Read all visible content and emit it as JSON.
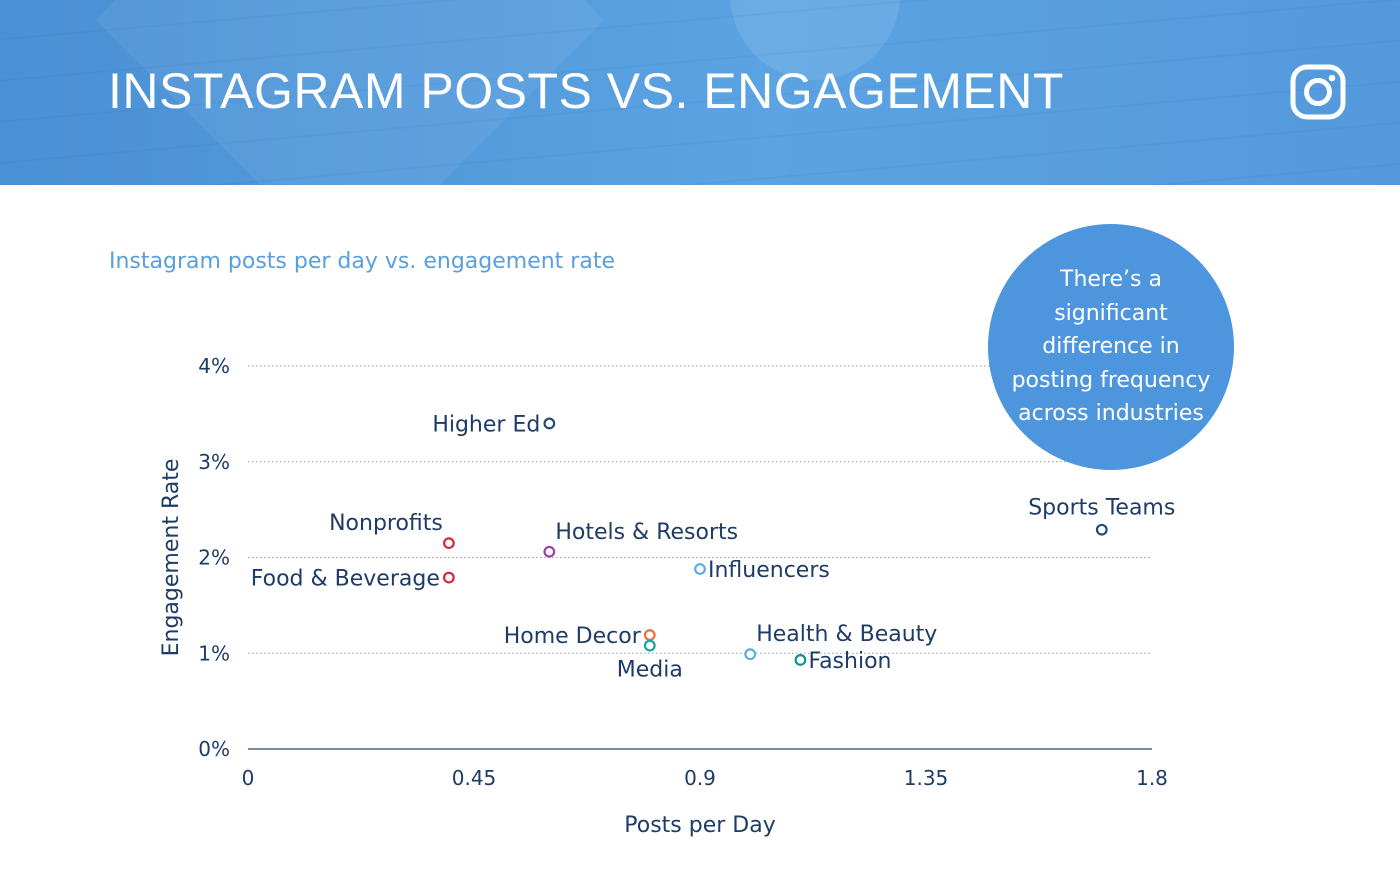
{
  "header": {
    "title": "INSTAGRAM POSTS VS. ENGAGEMENT",
    "logo_icon": "instagram-icon"
  },
  "subtitle": "Instagram posts per day vs. engagement rate",
  "callout": {
    "text": "There’s a significant difference in posting frequency across industries"
  },
  "colors": {
    "banner": "#5ba3e2",
    "accent": "#5a9fdb",
    "callout": "#4d95dc",
    "text": "#1e3c66"
  },
  "chart_data": {
    "type": "scatter",
    "title": "",
    "xlabel": "Posts per Day",
    "ylabel": "Engagement Rate",
    "xlim": [
      0,
      1.8
    ],
    "ylim": [
      0,
      4
    ],
    "x_ticks": [
      0,
      0.45,
      0.9,
      1.35,
      1.8
    ],
    "x_tick_labels": [
      "0",
      "0.45",
      "0.9",
      "1.35",
      "1.8"
    ],
    "y_ticks": [
      0,
      1,
      2,
      3,
      4
    ],
    "y_tick_labels": [
      "0%",
      "1%",
      "2%",
      "3%",
      "4%"
    ],
    "grid": "horizontal dotted",
    "points": [
      {
        "label": "Higher Ed",
        "x": 0.6,
        "y": 3.4,
        "color": "#1f4e79",
        "label_side": "left"
      },
      {
        "label": "Nonprofits",
        "x": 0.4,
        "y": 2.15,
        "color": "#d7263d",
        "label_side": "above-left"
      },
      {
        "label": "Food & Beverage",
        "x": 0.4,
        "y": 1.79,
        "color": "#d7263d",
        "label_side": "left"
      },
      {
        "label": "Hotels & Resorts",
        "x": 0.6,
        "y": 2.06,
        "color": "#9b3fb2",
        "label_side": "above-right"
      },
      {
        "label": "Influencers",
        "x": 0.9,
        "y": 1.88,
        "color": "#5aaee0",
        "label_side": "right"
      },
      {
        "label": "Home Decor",
        "x": 0.8,
        "y": 1.19,
        "color": "#f26b38",
        "label_side": "left"
      },
      {
        "label": "Media",
        "x": 0.8,
        "y": 1.08,
        "color": "#19a3a3",
        "label_side": "below"
      },
      {
        "label": "Health & Beauty",
        "x": 1.0,
        "y": 0.99,
        "color": "#5aaee0",
        "label_side": "above-right"
      },
      {
        "label": "Fashion",
        "x": 1.1,
        "y": 0.93,
        "color": "#14908c",
        "label_side": "right"
      },
      {
        "label": "Sports Teams",
        "x": 1.7,
        "y": 2.29,
        "color": "#1f4e79",
        "label_side": "above"
      }
    ]
  }
}
